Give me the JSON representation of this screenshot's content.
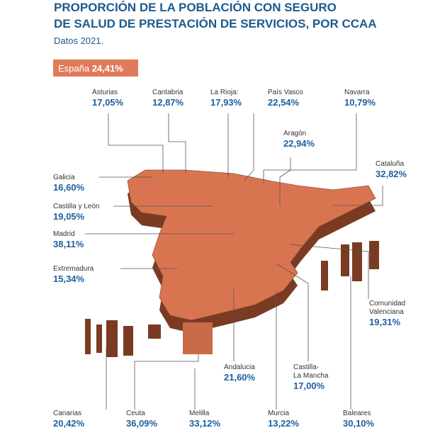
{
  "header": {
    "title_lines": [
      "PROPORCIÓN DE LA POBLACIÓN CON SEGURO",
      "DE SALUD DE PRESTACIÓN DE SERVICIOS, POR CCAA"
    ],
    "subtitle": "Datos 2021."
  },
  "badge": {
    "name": "España",
    "value": "24,41%"
  },
  "regions": [
    {
      "name": [
        "Asturias"
      ],
      "value": "17,05%"
    },
    {
      "name": [
        "Cantabria"
      ],
      "value": "12,87%"
    },
    {
      "name": [
        "La Rioja:"
      ],
      "value": "17,93%"
    },
    {
      "name": [
        "País Vasco"
      ],
      "value": "22,54%"
    },
    {
      "name": [
        "Navarra"
      ],
      "value": "10,79%"
    },
    {
      "name": [
        "Aragón"
      ],
      "value": "22,94%"
    },
    {
      "name": [
        "Cataluña"
      ],
      "value": "32,82%"
    },
    {
      "name": [
        "Galicia"
      ],
      "value": "16,60%"
    },
    {
      "name": [
        "Castilla y León"
      ],
      "value": "19,05%"
    },
    {
      "name": [
        "Madrid"
      ],
      "value": "38,11%"
    },
    {
      "name": [
        "Extremadura"
      ],
      "value": "15,34%"
    },
    {
      "name": [
        "Comunidad",
        "Valenciana"
      ],
      "value": "19,31%"
    },
    {
      "name": [
        "Andalucia"
      ],
      "value": "21,60%"
    },
    {
      "name": [
        "Castilla-",
        "La Mancha"
      ],
      "value": "17,00%"
    },
    {
      "name": [
        "Canarias"
      ],
      "value": "20,42%"
    },
    {
      "name": [
        "Ceuta"
      ],
      "value": "36,09%"
    },
    {
      "name": [
        "Melilla"
      ],
      "value": "33,12%"
    },
    {
      "name": [
        "Murcia"
      ],
      "value": "13,22%"
    },
    {
      "name": [
        "Baleares"
      ],
      "value": "30,10%"
    }
  ]
}
